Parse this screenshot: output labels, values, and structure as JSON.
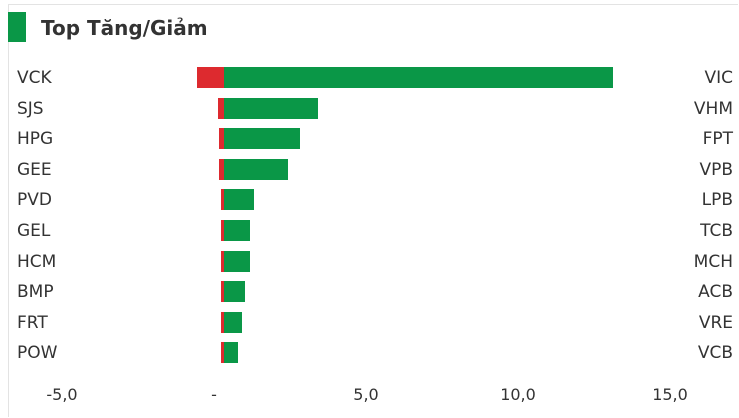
{
  "title": "Top Tăng/Giảm",
  "colors": {
    "accent": "#0a9747",
    "gain": "#0a9747",
    "loss": "#dd2a2f"
  },
  "chart_data": {
    "type": "bar",
    "orientation": "horizontal",
    "title": "Top Tăng/Giảm",
    "decliners": [
      "VCK",
      "SJS",
      "HPG",
      "GEE",
      "PVD",
      "GEL",
      "HCM",
      "BMP",
      "FRT",
      "POW"
    ],
    "gainers": [
      "VIC",
      "VHM",
      "FPT",
      "VPB",
      "LPB",
      "TCB",
      "MCH",
      "ACB",
      "VRE",
      "VCB"
    ],
    "series": [
      {
        "values": [
          -0.9,
          -0.2,
          -0.15,
          -0.15,
          -0.1,
          -0.1,
          -0.1,
          -0.1,
          -0.1,
          -0.1
        ]
      },
      {
        "values": [
          12.8,
          3.1,
          2.5,
          2.1,
          1.0,
          0.85,
          0.85,
          0.7,
          0.6,
          0.45
        ]
      }
    ],
    "x_ticks": [
      "-5,0",
      "-",
      "5,0",
      "10,0",
      "15,0"
    ],
    "xlim": [
      -5,
      15
    ],
    "grid": false
  }
}
